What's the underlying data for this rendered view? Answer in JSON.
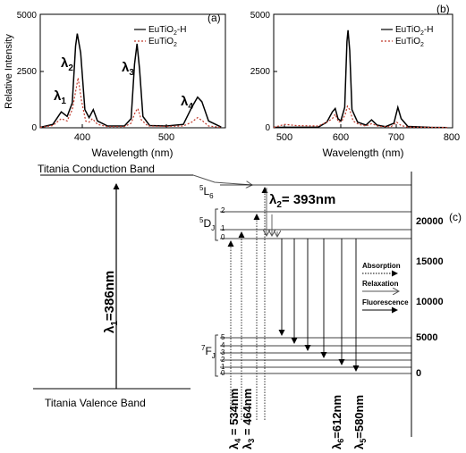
{
  "panel_a": {
    "tag": "(a)",
    "ylabel": "Relative Intensity",
    "xlabel": "Wavelength (nm)",
    "x_ticks": [
      "400",
      "500"
    ],
    "y_ticks": [
      "0",
      "2500",
      "5000"
    ],
    "peak_labels": [
      {
        "sym": "λ",
        "sub": "1"
      },
      {
        "sym": "λ",
        "sub": "2"
      },
      {
        "sym": "λ",
        "sub": "3"
      },
      {
        "sym": "λ",
        "sub": "4"
      }
    ],
    "legend": [
      {
        "base": "EuTiO",
        "sub": "2",
        "suffix": "-H"
      },
      {
        "base": "EuTiO",
        "sub": "2",
        "suffix": ""
      }
    ]
  },
  "panel_b": {
    "tag": "(b)",
    "xlabel": "Wavelength (nm)",
    "x_ticks": [
      "500",
      "600",
      "700",
      "800"
    ],
    "y_ticks": [
      "0",
      "2500",
      "5000"
    ],
    "legend": [
      {
        "base": "EuTiO",
        "sub": "2",
        "suffix": "-H"
      },
      {
        "base": "EuTiO",
        "sub": "2",
        "suffix": ""
      }
    ]
  },
  "panel_c": {
    "tag": "(c)",
    "conduction_band": "Titania Conduction Band",
    "valence_band": "Titania Valence Band",
    "lambda1": {
      "sym": "λ",
      "sub": "1",
      "val": "=386nm"
    },
    "lambda2": {
      "sym": "λ",
      "sub": "2",
      "val": "= 393nm"
    },
    "lambda3": {
      "sym": "λ",
      "sub": "3",
      "val": " = 464nm"
    },
    "lambda4": {
      "sym": "λ",
      "sub": "4",
      "val": " = 534nm"
    },
    "lambda5": {
      "sym": "λ",
      "sub": "5",
      "val": "=580nm"
    },
    "lambda6": {
      "sym": "λ",
      "sub": "6",
      "val": "=612nm"
    },
    "level_5L6": {
      "sup": "5",
      "main": "L",
      "sub": "6"
    },
    "level_5DJ": {
      "sup": "5",
      "main": "D",
      "sub": "J"
    },
    "level_7FJ": {
      "sup": "7",
      "main": "F",
      "sub": "J"
    },
    "d_levels": [
      "2",
      "1",
      "0"
    ],
    "f_levels": [
      "5",
      "4",
      "3",
      "2",
      "1",
      "0"
    ],
    "energy_ticks": [
      "20000",
      "15000",
      "10000",
      "5000",
      "0"
    ],
    "legend": {
      "absorption": "Absorption",
      "relaxation": "Relaxation",
      "fluorescence": "Fluorescence"
    }
  },
  "colors": {
    "series_h": "#000000",
    "series_plain": "#c0392b",
    "axis": "#000000",
    "gray": "#888888"
  },
  "chart_data": [
    {
      "type": "line",
      "title": "",
      "xlabel": "Wavelength (nm)",
      "ylabel": "Relative Intensity",
      "xlim": [
        350,
        570
      ],
      "ylim": [
        0,
        5000
      ],
      "grid": false,
      "legend": "top-right",
      "series": [
        {
          "name": "EuTiO2-H",
          "points": [
            [
              350,
              20
            ],
            [
              365,
              150
            ],
            [
              375,
              700
            ],
            [
              382,
              500
            ],
            [
              388,
              1100
            ],
            [
              392,
              3600
            ],
            [
              394,
              4150
            ],
            [
              398,
              3300
            ],
            [
              403,
              800
            ],
            [
              408,
              450
            ],
            [
              413,
              800
            ],
            [
              418,
              300
            ],
            [
              430,
              80
            ],
            [
              450,
              80
            ],
            [
              458,
              400
            ],
            [
              462,
              2800
            ],
            [
              465,
              3700
            ],
            [
              468,
              2600
            ],
            [
              472,
              500
            ],
            [
              480,
              100
            ],
            [
              500,
              80
            ],
            [
              520,
              150
            ],
            [
              530,
              900
            ],
            [
              537,
              1350
            ],
            [
              542,
              1150
            ],
            [
              550,
              300
            ],
            [
              565,
              30
            ]
          ]
        },
        {
          "name": "EuTiO2",
          "points": [
            [
              350,
              20
            ],
            [
              365,
              100
            ],
            [
              375,
              400
            ],
            [
              382,
              300
            ],
            [
              388,
              800
            ],
            [
              393,
              1800
            ],
            [
              395,
              2200
            ],
            [
              399,
              1200
            ],
            [
              404,
              300
            ],
            [
              408,
              250
            ],
            [
              412,
              400
            ],
            [
              418,
              150
            ],
            [
              430,
              50
            ],
            [
              450,
              50
            ],
            [
              458,
              200
            ],
            [
              463,
              700
            ],
            [
              466,
              850
            ],
            [
              470,
              350
            ],
            [
              478,
              80
            ],
            [
              500,
              60
            ],
            [
              520,
              80
            ],
            [
              530,
              250
            ],
            [
              537,
              450
            ],
            [
              543,
              300
            ],
            [
              550,
              80
            ],
            [
              565,
              20
            ]
          ]
        }
      ]
    },
    {
      "type": "line",
      "title": "",
      "xlabel": "Wavelength (nm)",
      "ylabel": "",
      "xlim": [
        480,
        800
      ],
      "ylim": [
        0,
        5000
      ],
      "grid": false,
      "legend": "top-right",
      "series": [
        {
          "name": "EuTiO2-H",
          "points": [
            [
              480,
              20
            ],
            [
              560,
              30
            ],
            [
              575,
              250
            ],
            [
              585,
              700
            ],
            [
              590,
              850
            ],
            [
              595,
              400
            ],
            [
              600,
              300
            ],
            [
              607,
              900
            ],
            [
              611,
              3800
            ],
            [
              613,
              4300
            ],
            [
              616,
              3400
            ],
            [
              620,
              800
            ],
            [
              630,
              250
            ],
            [
              645,
              120
            ],
            [
              655,
              350
            ],
            [
              665,
              120
            ],
            [
              680,
              50
            ],
            [
              695,
              200
            ],
            [
              702,
              900
            ],
            [
              708,
              400
            ],
            [
              720,
              60
            ],
            [
              760,
              20
            ],
            [
              790,
              10
            ]
          ]
        },
        {
          "name": "EuTiO2",
          "points": [
            [
              480,
              20
            ],
            [
              500,
              150
            ],
            [
              520,
              100
            ],
            [
              560,
              80
            ],
            [
              575,
              250
            ],
            [
              585,
              400
            ],
            [
              590,
              600
            ],
            [
              596,
              250
            ],
            [
              602,
              300
            ],
            [
              608,
              600
            ],
            [
              612,
              950
            ],
            [
              616,
              800
            ],
            [
              622,
              300
            ],
            [
              632,
              150
            ],
            [
              645,
              80
            ],
            [
              655,
              180
            ],
            [
              668,
              60
            ],
            [
              690,
              50
            ],
            [
              700,
              250
            ],
            [
              708,
              100
            ],
            [
              720,
              30
            ],
            [
              790,
              10
            ]
          ]
        }
      ]
    }
  ]
}
